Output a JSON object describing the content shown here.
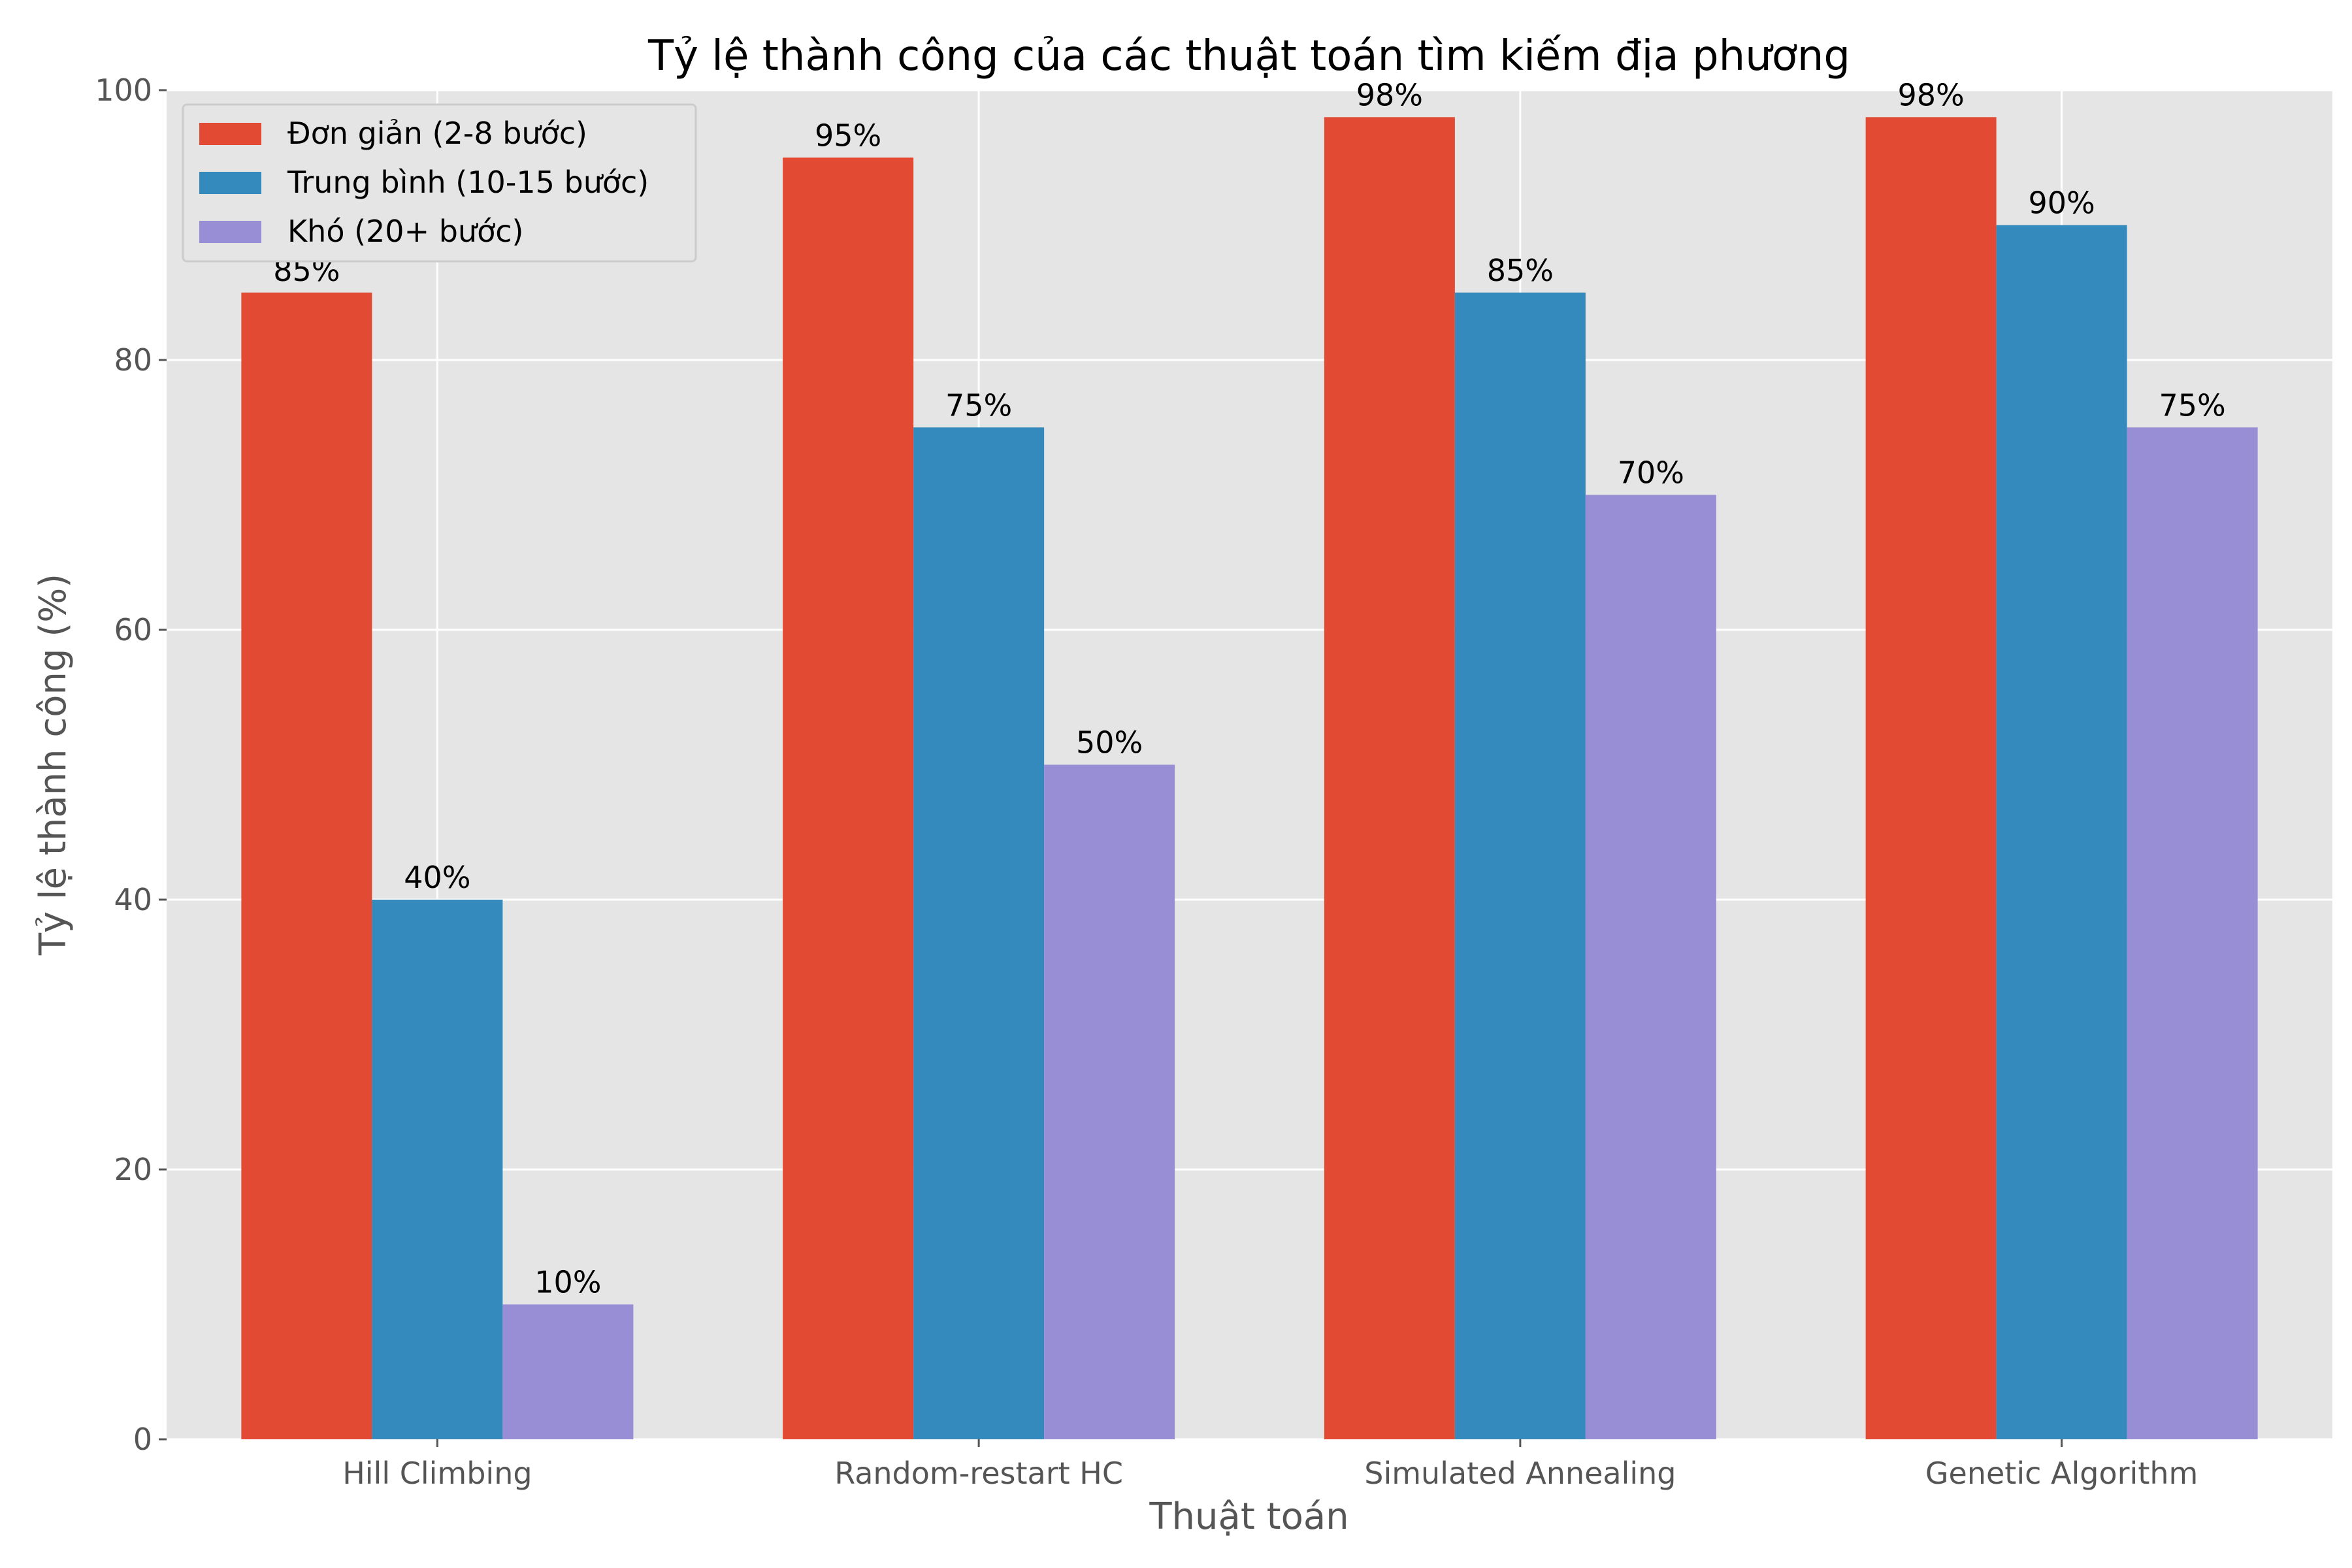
{
  "chart_data": {
    "type": "bar",
    "title": "Tỷ lệ thành công của các thuật toán tìm kiếm địa phương",
    "xlabel": "Thuật toán",
    "ylabel": "Tỷ lệ thành công (%)",
    "ylim": [
      0,
      100
    ],
    "yticks": [
      0,
      20,
      40,
      60,
      80,
      100
    ],
    "grid": true,
    "legend_position": "top-left",
    "value_suffix": "%",
    "categories": [
      "Hill Climbing",
      "Random-restart HC",
      "Simulated Annealing",
      "Genetic Algorithm"
    ],
    "series": [
      {
        "name": "Đơn giản (2-8 bước)",
        "color": "#E24A33",
        "values": [
          85,
          95,
          98,
          98
        ]
      },
      {
        "name": "Trung bình (10-15 bước)",
        "color": "#348ABD",
        "values": [
          40,
          75,
          85,
          90
        ]
      },
      {
        "name": "Khó (20+ bước)",
        "color": "#988ED5",
        "values": [
          10,
          50,
          70,
          75
        ]
      }
    ],
    "colors": {
      "plot_background": "#E5E5E5",
      "grid": "#FFFFFF",
      "tick_text": "#555555"
    }
  }
}
